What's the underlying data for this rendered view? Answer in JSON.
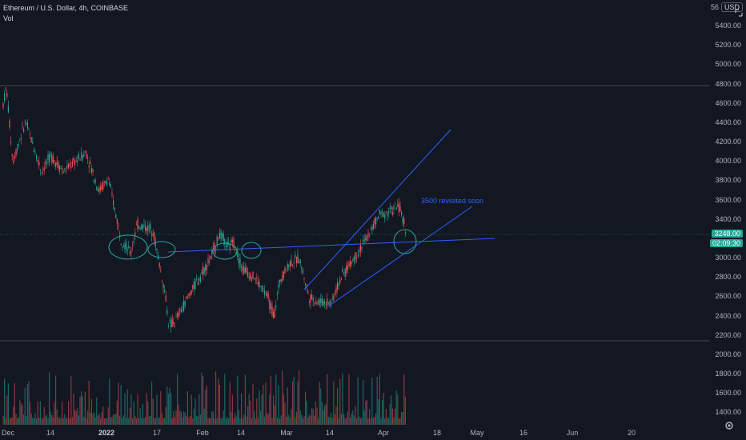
{
  "header": {
    "title": "Ethereum / U.S. Dollar, 4h, COINBASE",
    "indicator": "Vol"
  },
  "price_axis": {
    "currency": "USD",
    "top_partial": "56",
    "ticks": [
      "5400.00",
      "5200.00",
      "5000.00",
      "4800.00",
      "4600.00",
      "4400.00",
      "4200.00",
      "4000.00",
      "3800.00",
      "3600.00",
      "3400.00",
      "3000.00",
      "2800.00",
      "2600.00",
      "2400.00",
      "2200.00",
      "2000.00",
      "1800.00",
      "1600.00",
      "1400.00"
    ],
    "current_price": "3248.00",
    "countdown": "02:09:30",
    "price_color": "#26a69a"
  },
  "time_axis": {
    "labels": [
      "Dec",
      "14",
      "2022",
      "17",
      "Feb",
      "14",
      "Mar",
      "14",
      "Apr",
      "18",
      "May",
      "16",
      "Jun",
      "20"
    ]
  },
  "annotation": {
    "text": "3500 revisited soon",
    "color": "#2962ff"
  },
  "colors": {
    "up": "#26a69a",
    "down": "#ef5350",
    "drawing": "#2962ff",
    "background": "#131722"
  },
  "chart_data": {
    "type": "candlestick",
    "symbol": "Ethereum / U.S. Dollar",
    "interval": "4h",
    "exchange": "COINBASE",
    "ylim": [
      1300,
      5600
    ],
    "price_path": [
      [
        "Dec 1",
        4600
      ],
      [
        "Dec 2",
        4780
      ],
      [
        "Dec 4",
        4000
      ],
      [
        "Dec 8",
        4420
      ],
      [
        "Dec 13",
        3900
      ],
      [
        "Dec 16",
        4060
      ],
      [
        "Dec 20",
        3900
      ],
      [
        "Dec 27",
        4100
      ],
      [
        "Dec 31",
        3700
      ],
      [
        "Jan 3",
        3820
      ],
      [
        "Jan 7",
        3200
      ],
      [
        "Jan 10",
        3050
      ],
      [
        "Jan 12",
        3350
      ],
      [
        "Jan 17",
        3300
      ],
      [
        "Jan 21",
        2600
      ],
      [
        "Jan 22",
        2300
      ],
      [
        "Jan 24",
        2350
      ],
      [
        "Jan 28",
        2600
      ],
      [
        "Feb 4",
        3000
      ],
      [
        "Feb 7",
        3250
      ],
      [
        "Feb 10",
        3100
      ],
      [
        "Feb 11",
        3200
      ],
      [
        "Feb 14",
        2900
      ],
      [
        "Feb 18",
        2800
      ],
      [
        "Feb 22",
        2600
      ],
      [
        "Feb 24",
        2400
      ],
      [
        "Feb 26",
        2800
      ],
      [
        "Mar 1",
        2950
      ],
      [
        "Mar 4",
        3000
      ],
      [
        "Mar 7",
        2600
      ],
      [
        "Mar 10",
        2550
      ],
      [
        "Mar 14",
        2550
      ],
      [
        "Mar 17",
        2800
      ],
      [
        "Mar 21",
        3000
      ],
      [
        "Mar 25",
        3200
      ],
      [
        "Mar 29",
        3450
      ],
      [
        "Apr 2",
        3500
      ],
      [
        "Apr 4",
        3550
      ],
      [
        "Apr 6",
        3350
      ],
      [
        "Apr 7",
        3250
      ]
    ],
    "horizontal_lines": [
      4800,
      2180
    ],
    "current_price": 3248.0,
    "annotation": "3500 revisited soon",
    "volume_range": [
      1300,
      1900
    ]
  }
}
